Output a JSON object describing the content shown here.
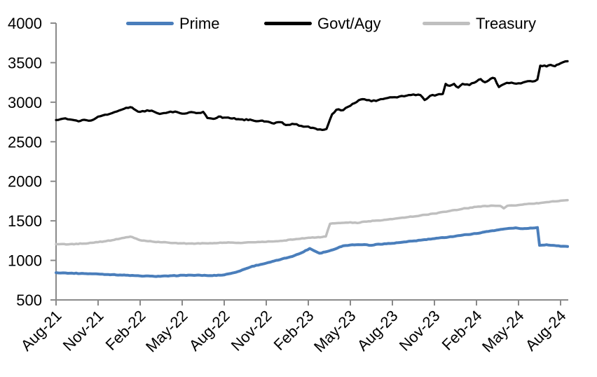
{
  "chart_data": {
    "type": "line",
    "background": "#ffffff",
    "axis_color": "#8a8a8a",
    "text_color": "#000000",
    "legend_position": "top",
    "grid": false,
    "x_axis": {
      "tick_labels": [
        "Aug-21",
        "Nov-21",
        "Feb-22",
        "May-22",
        "Aug-22",
        "Nov-22",
        "Feb-23",
        "May-23",
        "Aug-23",
        "Nov-23",
        "Feb-24",
        "May-24",
        "Aug-24"
      ],
      "months_per_tick": 3,
      "label_rotation_deg": -45
    },
    "y_axis": {
      "min": 500,
      "max": 4000,
      "tick_interval": 500,
      "tick_labels": [
        "500",
        "1000",
        "1500",
        "2000",
        "2500",
        "3000",
        "3500",
        "4000"
      ]
    },
    "series": [
      {
        "name": "Prime",
        "color": "#4a7ebb",
        "stroke_width": 4,
        "noise": 4,
        "points": [
          [
            0,
            845
          ],
          [
            0.5,
            842
          ],
          [
            1,
            838
          ],
          [
            2,
            833
          ],
          [
            3,
            828
          ],
          [
            4,
            820
          ],
          [
            5,
            812
          ],
          [
            6,
            803
          ],
          [
            7,
            798
          ],
          [
            8,
            801
          ],
          [
            9,
            812
          ],
          [
            10,
            812
          ],
          [
            11,
            808
          ],
          [
            12,
            816
          ],
          [
            13,
            860
          ],
          [
            14,
            925
          ],
          [
            15,
            965
          ],
          [
            16,
            1010
          ],
          [
            17,
            1060
          ],
          [
            17.5,
            1095
          ],
          [
            18.1,
            1150
          ],
          [
            18.8,
            1090
          ],
          [
            19.5,
            1120
          ],
          [
            20.5,
            1185
          ],
          [
            21,
            1195
          ],
          [
            22,
            1200
          ],
          [
            22.5,
            1190
          ],
          [
            23,
            1205
          ],
          [
            24,
            1215
          ],
          [
            25,
            1235
          ],
          [
            26,
            1255
          ],
          [
            27,
            1275
          ],
          [
            28,
            1295
          ],
          [
            29,
            1320
          ],
          [
            30,
            1340
          ],
          [
            31,
            1372
          ],
          [
            32,
            1398
          ],
          [
            32.8,
            1412
          ],
          [
            33.3,
            1400
          ],
          [
            34,
            1408
          ],
          [
            34.35,
            1415
          ],
          [
            34.5,
            1190
          ],
          [
            35,
            1198
          ],
          [
            35.7,
            1185
          ],
          [
            36.5,
            1175
          ]
        ]
      },
      {
        "name": "Govt/Agy",
        "color": "#000000",
        "stroke_width": 3.2,
        "noise": 11,
        "points": [
          [
            0,
            2775
          ],
          [
            0.5,
            2792
          ],
          [
            1,
            2782
          ],
          [
            1.6,
            2758
          ],
          [
            2,
            2778
          ],
          [
            2.5,
            2768
          ],
          [
            3,
            2818
          ],
          [
            3.5,
            2842
          ],
          [
            4,
            2862
          ],
          [
            4.5,
            2895
          ],
          [
            5,
            2930
          ],
          [
            5.3,
            2938
          ],
          [
            5.7,
            2898
          ],
          [
            6,
            2878
          ],
          [
            6.5,
            2898
          ],
          [
            7,
            2880
          ],
          [
            7.4,
            2852
          ],
          [
            8,
            2872
          ],
          [
            8.5,
            2882
          ],
          [
            9,
            2855
          ],
          [
            9.5,
            2872
          ],
          [
            10,
            2862
          ],
          [
            10.5,
            2878
          ],
          [
            10.8,
            2800
          ],
          [
            11.2,
            2790
          ],
          [
            11.6,
            2818
          ],
          [
            12,
            2806
          ],
          [
            13,
            2786
          ],
          [
            14,
            2772
          ],
          [
            15,
            2756
          ],
          [
            15.4,
            2736
          ],
          [
            16,
            2748
          ],
          [
            16.4,
            2712
          ],
          [
            17,
            2722
          ],
          [
            17.5,
            2700
          ],
          [
            18,
            2692
          ],
          [
            18.5,
            2668
          ],
          [
            19,
            2650
          ],
          [
            19.3,
            2662
          ],
          [
            19.7,
            2848
          ],
          [
            20,
            2905
          ],
          [
            20.5,
            2900
          ],
          [
            21,
            2955
          ],
          [
            21.6,
            3025
          ],
          [
            22,
            3038
          ],
          [
            22.5,
            3012
          ],
          [
            23,
            3028
          ],
          [
            23.5,
            3048
          ],
          [
            24,
            3062
          ],
          [
            24.5,
            3072
          ],
          [
            25,
            3082
          ],
          [
            25.5,
            3098
          ],
          [
            26,
            3090
          ],
          [
            26.3,
            3028
          ],
          [
            26.7,
            3082
          ],
          [
            27.2,
            3095
          ],
          [
            27.6,
            3105
          ],
          [
            27.8,
            3232
          ],
          [
            28.1,
            3208
          ],
          [
            28.4,
            3232
          ],
          [
            28.7,
            3185
          ],
          [
            29,
            3232
          ],
          [
            29.5,
            3218
          ],
          [
            30,
            3262
          ],
          [
            30.3,
            3292
          ],
          [
            30.6,
            3252
          ],
          [
            31,
            3296
          ],
          [
            31.3,
            3302
          ],
          [
            31.6,
            3192
          ],
          [
            32,
            3232
          ],
          [
            32.5,
            3248
          ],
          [
            33,
            3240
          ],
          [
            33.5,
            3258
          ],
          [
            34,
            3262
          ],
          [
            34.35,
            3288
          ],
          [
            34.55,
            3462
          ],
          [
            35,
            3452
          ],
          [
            35.3,
            3472
          ],
          [
            35.6,
            3455
          ],
          [
            36,
            3492
          ],
          [
            36.5,
            3518
          ]
        ]
      },
      {
        "name": "Treasury",
        "color": "#bfbfbf",
        "stroke_width": 3.5,
        "noise": 5,
        "points": [
          [
            0,
            1205
          ],
          [
            1,
            1205
          ],
          [
            2,
            1212
          ],
          [
            3,
            1230
          ],
          [
            4,
            1255
          ],
          [
            5,
            1292
          ],
          [
            5.3,
            1300
          ],
          [
            6,
            1255
          ],
          [
            7,
            1235
          ],
          [
            8,
            1225
          ],
          [
            9,
            1215
          ],
          [
            10,
            1213
          ],
          [
            11,
            1218
          ],
          [
            12,
            1225
          ],
          [
            13,
            1222
          ],
          [
            14,
            1228
          ],
          [
            15,
            1235
          ],
          [
            16,
            1246
          ],
          [
            17,
            1266
          ],
          [
            18,
            1286
          ],
          [
            19,
            1296
          ],
          [
            19.25,
            1302
          ],
          [
            19.55,
            1462
          ],
          [
            20,
            1470
          ],
          [
            21,
            1482
          ],
          [
            21.5,
            1472
          ],
          [
            22,
            1490
          ],
          [
            23,
            1505
          ],
          [
            24,
            1522
          ],
          [
            25,
            1545
          ],
          [
            26,
            1568
          ],
          [
            27,
            1592
          ],
          [
            28,
            1622
          ],
          [
            29,
            1652
          ],
          [
            30,
            1678
          ],
          [
            30.6,
            1688
          ],
          [
            31.2,
            1692
          ],
          [
            31.7,
            1688
          ],
          [
            31.95,
            1658
          ],
          [
            32.2,
            1690
          ],
          [
            33,
            1700
          ],
          [
            34,
            1716
          ],
          [
            35,
            1736
          ],
          [
            36,
            1755
          ],
          [
            36.5,
            1762
          ]
        ]
      }
    ]
  }
}
